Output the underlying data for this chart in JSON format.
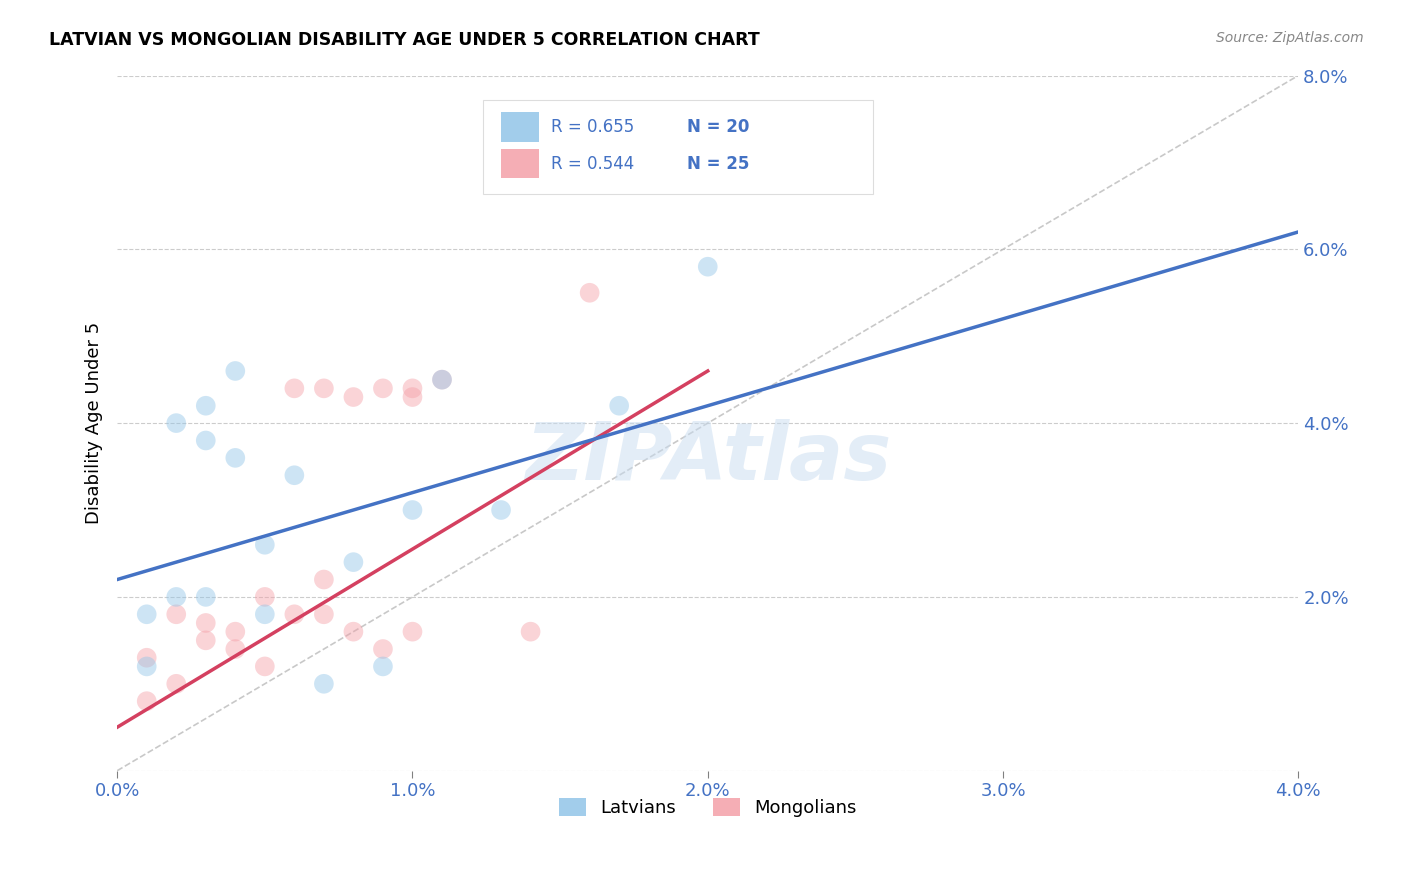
{
  "title": "LATVIAN VS MONGOLIAN DISABILITY AGE UNDER 5 CORRELATION CHART",
  "source": "Source: ZipAtlas.com",
  "ylabel": "Disability Age Under 5",
  "xmin": 0.0,
  "xmax": 0.04,
  "ymin": 0.0,
  "ymax": 0.08,
  "latvian_color": "#92C5E8",
  "mongolian_color": "#F4A0A8",
  "latvian_line_color": "#4472C4",
  "mongolian_line_color": "#D44060",
  "diagonal_color": "#BBBBBB",
  "legend_R_latvian": "R = 0.655",
  "legend_N_latvian": "N = 20",
  "legend_R_mongolian": "R = 0.544",
  "legend_N_mongolian": "N = 25",
  "watermark": "ZIPAtlas",
  "font_color_blue": "#4472C4",
  "grid_color": "#CCCCCC",
  "latvian_x": [
    0.001,
    0.001,
    0.002,
    0.002,
    0.003,
    0.003,
    0.003,
    0.004,
    0.004,
    0.005,
    0.005,
    0.006,
    0.007,
    0.008,
    0.009,
    0.01,
    0.011,
    0.013,
    0.017,
    0.02
  ],
  "latvian_y": [
    0.012,
    0.018,
    0.02,
    0.04,
    0.02,
    0.038,
    0.042,
    0.036,
    0.046,
    0.018,
    0.026,
    0.034,
    0.01,
    0.024,
    0.012,
    0.03,
    0.045,
    0.03,
    0.042,
    0.058
  ],
  "mongolian_x": [
    0.001,
    0.001,
    0.002,
    0.002,
    0.003,
    0.003,
    0.004,
    0.004,
    0.005,
    0.005,
    0.006,
    0.006,
    0.007,
    0.007,
    0.007,
    0.008,
    0.008,
    0.009,
    0.009,
    0.01,
    0.01,
    0.01,
    0.011,
    0.014,
    0.016
  ],
  "mongolian_y": [
    0.008,
    0.013,
    0.01,
    0.018,
    0.015,
    0.017,
    0.016,
    0.014,
    0.012,
    0.02,
    0.018,
    0.044,
    0.018,
    0.022,
    0.044,
    0.016,
    0.043,
    0.014,
    0.044,
    0.043,
    0.044,
    0.016,
    0.045,
    0.016,
    0.055
  ],
  "latvian_line_x0": 0.0,
  "latvian_line_y0": 0.022,
  "latvian_line_x1": 0.04,
  "latvian_line_y1": 0.062,
  "mongolian_line_x0": 0.0,
  "mongolian_line_y0": 0.005,
  "mongolian_line_x1": 0.02,
  "mongolian_line_y1": 0.046,
  "marker_size": 200,
  "marker_alpha": 0.45
}
